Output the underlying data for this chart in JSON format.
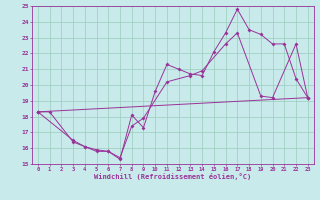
{
  "bg_color": "#c8eaea",
  "grid_color": "#99ccbb",
  "line_color": "#993399",
  "xlim": [
    -0.5,
    23.5
  ],
  "ylim": [
    15,
    25
  ],
  "xticks": [
    0,
    1,
    2,
    3,
    4,
    5,
    6,
    7,
    8,
    9,
    10,
    11,
    12,
    13,
    14,
    15,
    16,
    17,
    18,
    19,
    20,
    21,
    22,
    23
  ],
  "yticks": [
    15,
    16,
    17,
    18,
    19,
    20,
    21,
    22,
    23,
    24,
    25
  ],
  "xlabel": "Windchill (Refroidissement éolien,°C)",
  "line1_x": [
    0,
    1,
    3,
    4,
    5,
    6,
    7,
    8,
    9,
    10,
    11,
    12,
    13,
    14,
    15,
    16,
    17,
    18,
    19,
    20,
    21,
    22,
    23
  ],
  "line1_y": [
    18.3,
    18.3,
    16.4,
    16.1,
    15.8,
    15.8,
    15.3,
    18.1,
    17.3,
    19.6,
    21.3,
    21.0,
    20.7,
    20.6,
    22.1,
    23.3,
    24.8,
    23.5,
    23.2,
    22.6,
    22.6,
    20.4,
    19.2
  ],
  "line2_x": [
    0,
    23
  ],
  "line2_y": [
    18.3,
    19.2
  ],
  "line3_x": [
    0,
    3,
    4,
    5,
    6,
    7,
    8,
    9,
    11,
    13,
    14,
    16,
    17,
    19,
    20,
    22,
    23
  ],
  "line3_y": [
    18.3,
    16.5,
    16.1,
    15.9,
    15.8,
    15.4,
    17.4,
    17.9,
    20.2,
    20.6,
    20.9,
    22.6,
    23.3,
    19.3,
    19.2,
    22.6,
    19.2
  ]
}
